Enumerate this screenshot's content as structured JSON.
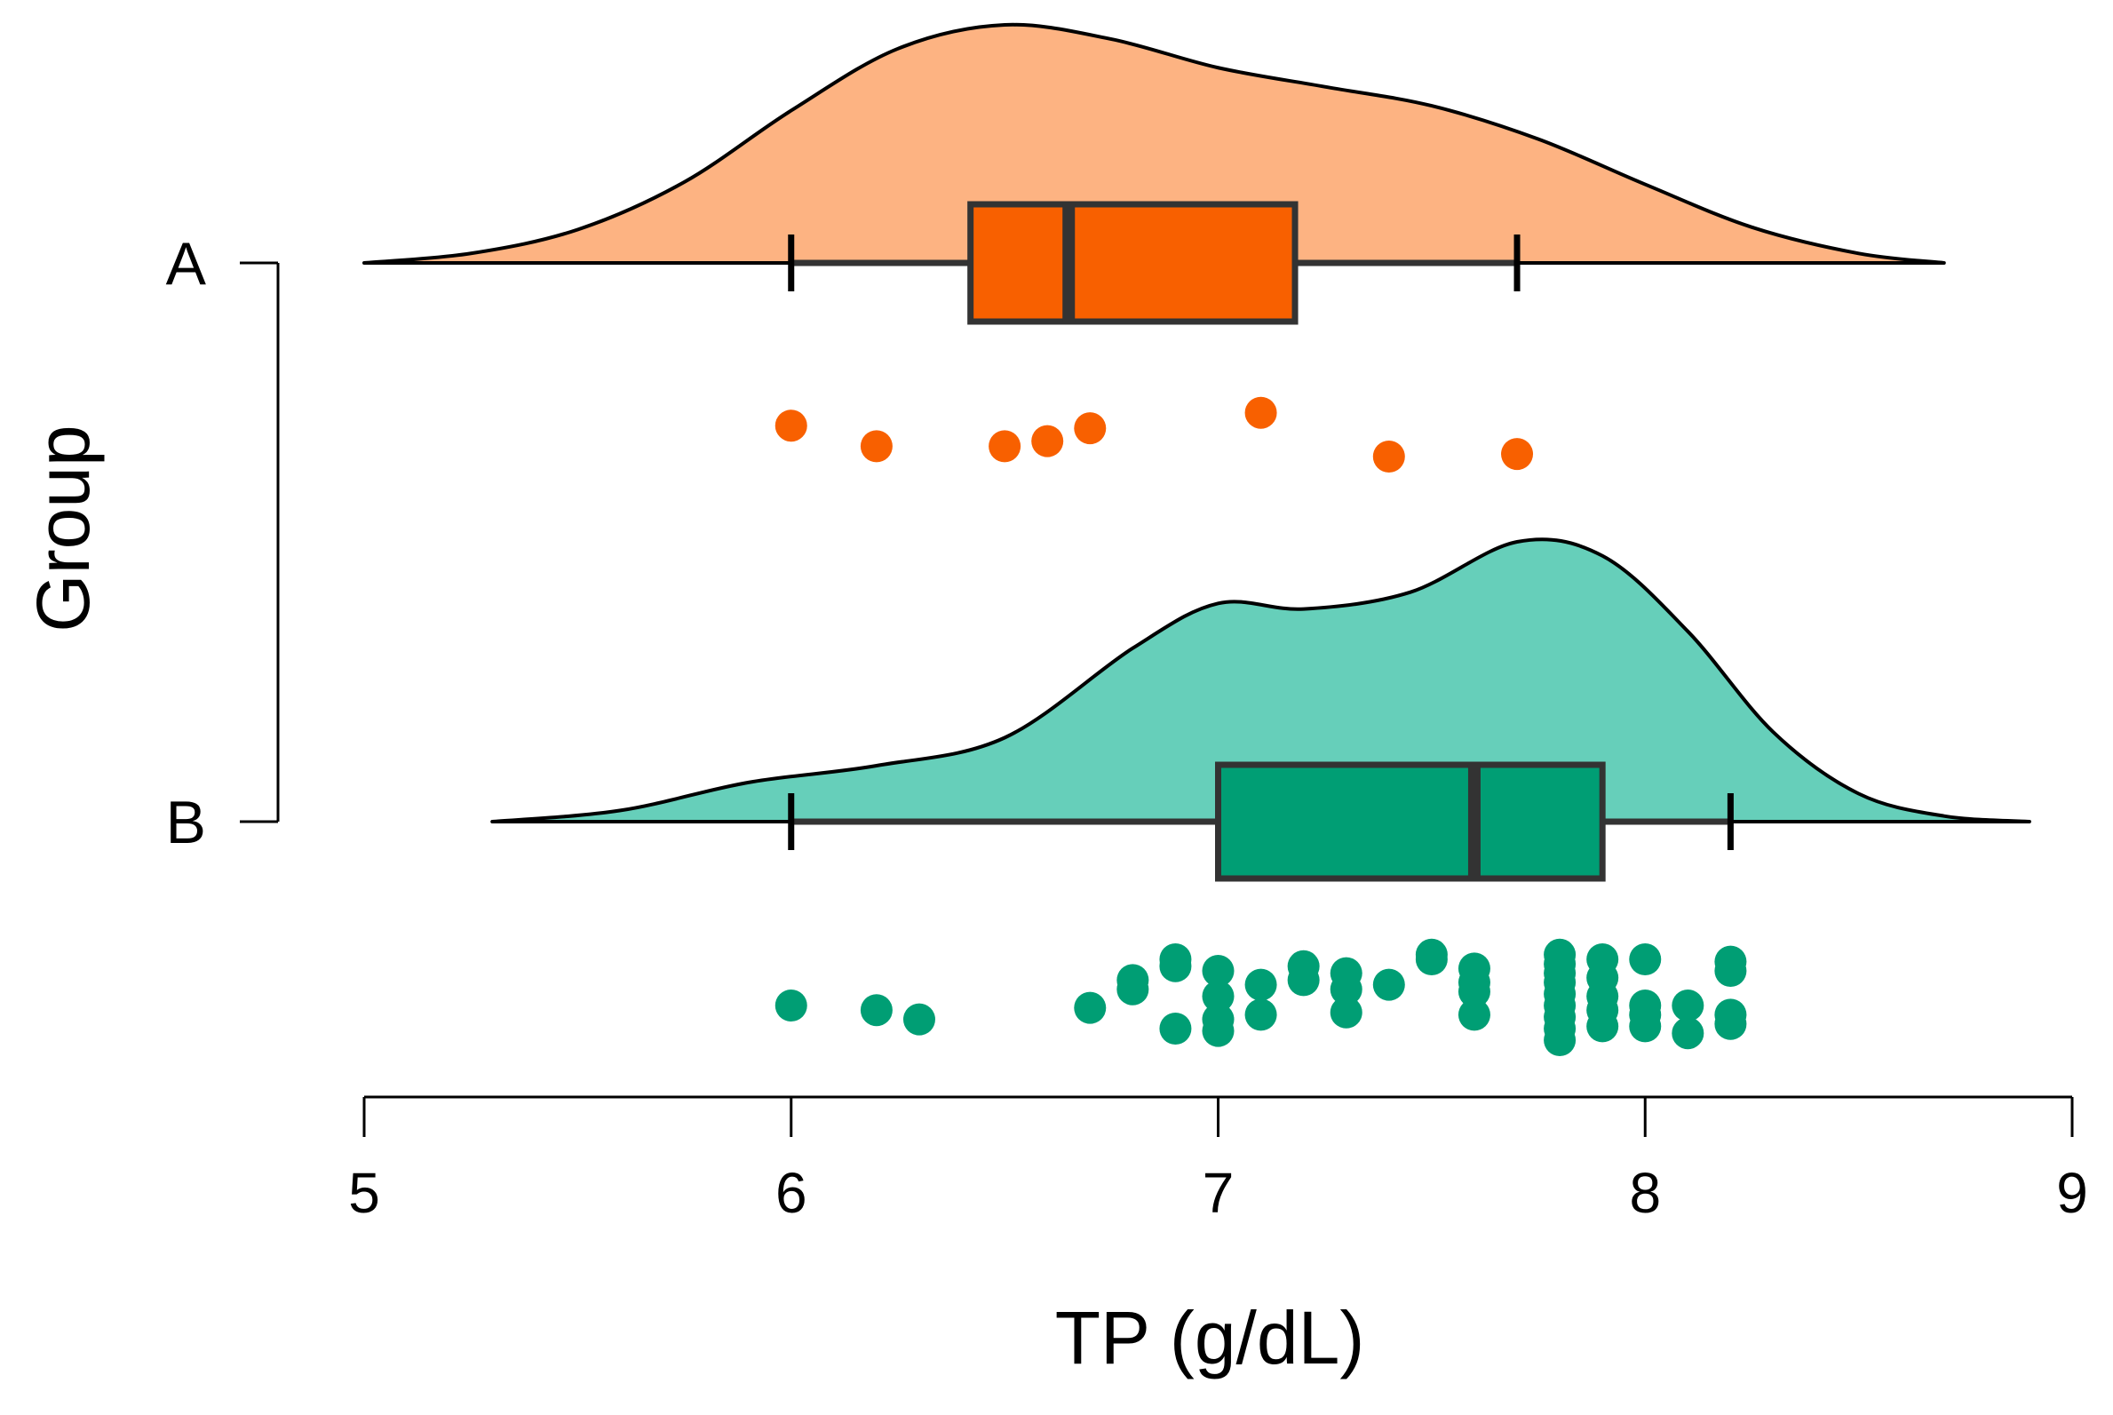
{
  "chart_data": {
    "type": "raincloud",
    "title": "",
    "xlabel": "TP (g/dL)",
    "ylabel": "Group",
    "xlim": [
      5,
      9
    ],
    "xticks": [
      "5",
      "6",
      "7",
      "8",
      "9"
    ],
    "grid": false,
    "groups": [
      {
        "name": "A",
        "fill_color": "#FDB382",
        "box_color": "#F86000",
        "point_color": "#F86000",
        "density": {
          "x": [
            5.0,
            5.25,
            5.5,
            5.75,
            6.0,
            6.25,
            6.5,
            6.75,
            7.0,
            7.25,
            7.5,
            7.75,
            8.0,
            8.25,
            8.5,
            8.7
          ],
          "y": [
            0.0,
            0.04,
            0.14,
            0.34,
            0.64,
            0.9,
            1.0,
            0.94,
            0.82,
            0.74,
            0.66,
            0.52,
            0.33,
            0.15,
            0.04,
            0.0
          ]
        },
        "box": {
          "whisker_low": 6.0,
          "q1": 6.42,
          "median": 6.65,
          "q3": 7.18,
          "whisker_high": 7.7
        },
        "points": [
          {
            "x": 6.0,
            "jitter": 0.1
          },
          {
            "x": 6.2,
            "jitter": -0.3
          },
          {
            "x": 6.5,
            "jitter": -0.3
          },
          {
            "x": 6.6,
            "jitter": -0.2
          },
          {
            "x": 6.7,
            "jitter": 0.05
          },
          {
            "x": 7.1,
            "jitter": 0.35
          },
          {
            "x": 7.4,
            "jitter": -0.5
          },
          {
            "x": 7.7,
            "jitter": -0.45
          }
        ]
      },
      {
        "name": "B",
        "fill_color": "#66CFBA",
        "box_color": "#009E74",
        "point_color": "#009E74",
        "density": {
          "x": [
            5.3,
            5.6,
            5.9,
            6.2,
            6.5,
            6.8,
            7.0,
            7.2,
            7.45,
            7.7,
            7.9,
            8.1,
            8.3,
            8.5,
            8.7,
            8.9
          ],
          "y": [
            0.0,
            0.04,
            0.14,
            0.2,
            0.3,
            0.62,
            0.78,
            0.76,
            0.82,
            1.0,
            0.95,
            0.68,
            0.32,
            0.1,
            0.02,
            0.0
          ]
        },
        "box": {
          "whisker_low": 6.0,
          "q1": 7.0,
          "median": 7.6,
          "q3": 7.9,
          "whisker_high": 8.2
        },
        "points": [
          {
            "x": 6.0,
            "jitter": 0.0
          },
          {
            "x": 6.2,
            "jitter": -0.1
          },
          {
            "x": 6.3,
            "jitter": -0.3
          },
          {
            "x": 6.7,
            "jitter": -0.05
          },
          {
            "x": 6.8,
            "jitter": 0.35
          },
          {
            "x": 6.8,
            "jitter": 0.55
          },
          {
            "x": 6.9,
            "jitter": 0.85
          },
          {
            "x": 6.9,
            "jitter": 1.0
          },
          {
            "x": 6.9,
            "jitter": -0.5
          },
          {
            "x": 7.0,
            "jitter": 0.75
          },
          {
            "x": 7.0,
            "jitter": 0.2
          },
          {
            "x": 7.0,
            "jitter": -0.3
          },
          {
            "x": 7.0,
            "jitter": -0.55
          },
          {
            "x": 7.1,
            "jitter": 0.45
          },
          {
            "x": 7.1,
            "jitter": -0.2
          },
          {
            "x": 7.2,
            "jitter": 0.85
          },
          {
            "x": 7.2,
            "jitter": 0.55
          },
          {
            "x": 7.3,
            "jitter": 0.7
          },
          {
            "x": 7.3,
            "jitter": 0.35
          },
          {
            "x": 7.3,
            "jitter": -0.15
          },
          {
            "x": 7.4,
            "jitter": 0.45
          },
          {
            "x": 7.5,
            "jitter": 1.0
          },
          {
            "x": 7.5,
            "jitter": 1.1
          },
          {
            "x": 7.6,
            "jitter": 0.8
          },
          {
            "x": 7.6,
            "jitter": 0.5
          },
          {
            "x": 7.6,
            "jitter": 0.3
          },
          {
            "x": 7.6,
            "jitter": -0.2
          },
          {
            "x": 7.8,
            "jitter": 1.1
          },
          {
            "x": 7.8,
            "jitter": 0.9
          },
          {
            "x": 7.8,
            "jitter": 0.7
          },
          {
            "x": 7.8,
            "jitter": 0.5
          },
          {
            "x": 7.8,
            "jitter": 0.25
          },
          {
            "x": 7.8,
            "jitter": 0.0
          },
          {
            "x": 7.8,
            "jitter": -0.25
          },
          {
            "x": 7.8,
            "jitter": -0.5
          },
          {
            "x": 7.8,
            "jitter": -0.75
          },
          {
            "x": 7.9,
            "jitter": 1.0
          },
          {
            "x": 7.9,
            "jitter": 0.6
          },
          {
            "x": 7.9,
            "jitter": 0.2
          },
          {
            "x": 7.9,
            "jitter": -0.1
          },
          {
            "x": 7.9,
            "jitter": -0.45
          },
          {
            "x": 8.0,
            "jitter": 1.0
          },
          {
            "x": 8.0,
            "jitter": 0.0
          },
          {
            "x": 8.0,
            "jitter": -0.2
          },
          {
            "x": 8.0,
            "jitter": -0.45
          },
          {
            "x": 8.1,
            "jitter": 0.0
          },
          {
            "x": 8.1,
            "jitter": -0.6
          },
          {
            "x": 8.2,
            "jitter": 0.95
          },
          {
            "x": 8.2,
            "jitter": 0.75
          },
          {
            "x": 8.2,
            "jitter": -0.2
          },
          {
            "x": 8.2,
            "jitter": -0.4
          }
        ]
      }
    ]
  }
}
